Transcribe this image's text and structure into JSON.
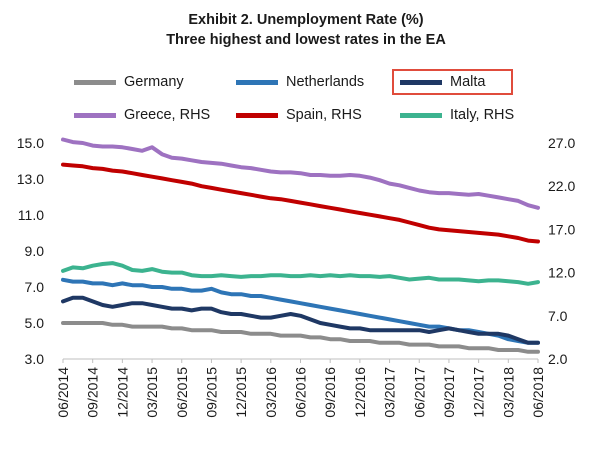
{
  "title_line1": "Exhibit 2. Unemployment Rate (%)",
  "title_line2": "Three highest and lowest rates in the EA",
  "chart_data": {
    "type": "line",
    "x": [
      "06/2014",
      "07/2014",
      "08/2014",
      "09/2014",
      "10/2014",
      "11/2014",
      "12/2014",
      "01/2015",
      "02/2015",
      "03/2015",
      "04/2015",
      "05/2015",
      "06/2015",
      "07/2015",
      "08/2015",
      "09/2015",
      "10/2015",
      "11/2015",
      "12/2015",
      "01/2016",
      "02/2016",
      "03/2016",
      "04/2016",
      "05/2016",
      "06/2016",
      "07/2016",
      "08/2016",
      "09/2016",
      "10/2016",
      "11/2016",
      "12/2016",
      "01/2017",
      "02/2017",
      "03/2017",
      "04/2017",
      "05/2017",
      "06/2017",
      "07/2017",
      "08/2017",
      "09/2017",
      "10/2017",
      "11/2017",
      "12/2017",
      "01/2018",
      "02/2018",
      "03/2018",
      "04/2018",
      "05/2018",
      "06/2018"
    ],
    "x_tick_labels": [
      "06/2014",
      "09/2014",
      "12/2014",
      "03/2015",
      "06/2015",
      "09/2015",
      "12/2015",
      "03/2016",
      "06/2016",
      "09/2016",
      "12/2016",
      "03/2017",
      "06/2017",
      "09/2017",
      "12/2017",
      "03/2018",
      "06/2018"
    ],
    "y_left": {
      "min": 3.0,
      "max": 15.0,
      "ticks": [
        "3.0",
        "5.0",
        "7.0",
        "9.0",
        "11.0",
        "13.0",
        "15.0"
      ]
    },
    "y_right": {
      "min": 2.0,
      "max": 27.0,
      "ticks": [
        "2.0",
        "7.0",
        "12.0",
        "17.0",
        "22.0",
        "27.0"
      ]
    },
    "grid": false,
    "series": [
      {
        "name": "Germany",
        "axis": "left",
        "color": "#8c8c8c",
        "values": [
          5.0,
          5.0,
          5.0,
          5.0,
          5.0,
          4.9,
          4.9,
          4.8,
          4.8,
          4.8,
          4.8,
          4.7,
          4.7,
          4.6,
          4.6,
          4.6,
          4.5,
          4.5,
          4.5,
          4.4,
          4.4,
          4.4,
          4.3,
          4.3,
          4.3,
          4.2,
          4.2,
          4.1,
          4.1,
          4.0,
          4.0,
          4.0,
          3.9,
          3.9,
          3.9,
          3.8,
          3.8,
          3.8,
          3.7,
          3.7,
          3.7,
          3.6,
          3.6,
          3.6,
          3.5,
          3.5,
          3.5,
          3.4,
          3.4
        ]
      },
      {
        "name": "Netherlands",
        "axis": "left",
        "color": "#2e75b6",
        "values": [
          7.4,
          7.3,
          7.3,
          7.2,
          7.2,
          7.1,
          7.2,
          7.1,
          7.1,
          7.0,
          7.0,
          6.9,
          6.9,
          6.8,
          6.8,
          6.9,
          6.7,
          6.6,
          6.6,
          6.5,
          6.5,
          6.4,
          6.3,
          6.2,
          6.1,
          6.0,
          5.9,
          5.8,
          5.7,
          5.6,
          5.5,
          5.4,
          5.3,
          5.2,
          5.1,
          5.0,
          4.9,
          4.8,
          4.8,
          4.7,
          4.6,
          4.6,
          4.5,
          4.4,
          4.3,
          4.1,
          4.0,
          3.9,
          3.9
        ]
      },
      {
        "name": "Malta",
        "axis": "left",
        "color": "#1f3864",
        "values": [
          6.2,
          6.4,
          6.4,
          6.2,
          6.0,
          5.9,
          6.0,
          6.1,
          6.1,
          6.0,
          5.9,
          5.8,
          5.8,
          5.7,
          5.8,
          5.8,
          5.6,
          5.5,
          5.5,
          5.4,
          5.3,
          5.3,
          5.4,
          5.5,
          5.4,
          5.2,
          5.0,
          4.9,
          4.8,
          4.7,
          4.7,
          4.6,
          4.6,
          4.6,
          4.6,
          4.6,
          4.6,
          4.5,
          4.6,
          4.7,
          4.6,
          4.5,
          4.4,
          4.4,
          4.4,
          4.3,
          4.1,
          3.9,
          3.9
        ]
      },
      {
        "name": "Greece, RHS",
        "axis": "right",
        "color": "#9e72c1",
        "values": [
          27.4,
          27.1,
          27.0,
          26.7,
          26.6,
          26.6,
          26.5,
          26.3,
          26.1,
          26.5,
          25.7,
          25.3,
          25.2,
          25.0,
          24.8,
          24.7,
          24.6,
          24.4,
          24.2,
          24.1,
          23.9,
          23.7,
          23.6,
          23.6,
          23.5,
          23.3,
          23.3,
          23.2,
          23.2,
          23.3,
          23.2,
          23.0,
          22.7,
          22.3,
          22.1,
          21.8,
          21.5,
          21.3,
          21.2,
          21.2,
          21.1,
          21.0,
          21.1,
          20.9,
          20.7,
          20.5,
          20.3,
          19.8,
          19.5
        ]
      },
      {
        "name": "Spain, RHS",
        "axis": "right",
        "color": "#c00000",
        "values": [
          24.5,
          24.4,
          24.3,
          24.1,
          24.0,
          23.8,
          23.7,
          23.5,
          23.3,
          23.1,
          22.9,
          22.7,
          22.5,
          22.3,
          22.0,
          21.8,
          21.6,
          21.4,
          21.2,
          21.0,
          20.8,
          20.6,
          20.5,
          20.3,
          20.1,
          19.9,
          19.7,
          19.5,
          19.3,
          19.1,
          18.9,
          18.7,
          18.5,
          18.3,
          18.1,
          17.8,
          17.5,
          17.2,
          17.0,
          16.9,
          16.8,
          16.7,
          16.6,
          16.5,
          16.4,
          16.2,
          16.0,
          15.7,
          15.6
        ]
      },
      {
        "name": "Italy, RHS",
        "axis": "right",
        "color": "#3cb38f",
        "values": [
          12.2,
          12.6,
          12.5,
          12.8,
          13.0,
          13.1,
          12.8,
          12.3,
          12.2,
          12.4,
          12.1,
          12.0,
          12.0,
          11.7,
          11.6,
          11.6,
          11.7,
          11.6,
          11.5,
          11.6,
          11.6,
          11.7,
          11.7,
          11.6,
          11.6,
          11.7,
          11.6,
          11.7,
          11.6,
          11.7,
          11.6,
          11.6,
          11.5,
          11.6,
          11.4,
          11.2,
          11.3,
          11.4,
          11.2,
          11.2,
          11.2,
          11.1,
          11.0,
          11.1,
          11.1,
          11.0,
          10.9,
          10.7,
          10.9
        ]
      }
    ]
  }
}
